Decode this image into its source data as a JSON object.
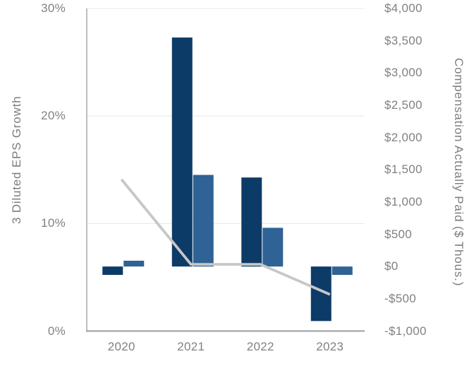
{
  "chart_data": {
    "type": "combo",
    "description": "Dual-axis pay-versus-performance chart: two bar series (compensation, right axis, $ thousands) and one gray line series (3-year diluted EPS growth, left axis, %).",
    "categories": [
      "2020",
      "2021",
      "2022",
      "2023"
    ],
    "series": [
      {
        "name": "compensation-dark-navy-bars",
        "type": "bar",
        "axis": "right",
        "color": "#0d3b68",
        "values": [
          -130,
          3550,
          1380,
          -845
        ]
      },
      {
        "name": "compensation-medium-blue-bars",
        "type": "bar",
        "axis": "right",
        "color": "#2f6295",
        "values": [
          90,
          1420,
          600,
          -130
        ]
      },
      {
        "name": "eps-growth-line",
        "type": "line",
        "axis": "left",
        "color": "#c7c7c7",
        "values": [
          14.1,
          6.2,
          6.2,
          3.4
        ]
      }
    ],
    "left_axis": {
      "title": "3 Diluted EPS Growth",
      "min": 0,
      "max": 30,
      "ticks": [
        {
          "label": "30%",
          "value": 30
        },
        {
          "label": "20%",
          "value": 20
        },
        {
          "label": "10%",
          "value": 10
        },
        {
          "label": "0%",
          "value": 0
        }
      ]
    },
    "right_axis": {
      "title": "Compensation Actually Paid ($ Thous.)",
      "min": -1000,
      "max": 4000,
      "ticks": [
        {
          "label": "$4,000",
          "value": 4000
        },
        {
          "label": "$3,500",
          "value": 3500
        },
        {
          "label": "$3,000",
          "value": 3000
        },
        {
          "label": "$2,500",
          "value": 2500
        },
        {
          "label": "$2,000",
          "value": 2000
        },
        {
          "label": "$1,500",
          "value": 1500
        },
        {
          "label": "$1,000",
          "value": 1000
        },
        {
          "label": "$500",
          "value": 500
        },
        {
          "label": "$0",
          "value": 0
        },
        {
          "label": "-$500",
          "value": -500
        },
        {
          "label": "-$1,000",
          "value": -1000
        }
      ]
    },
    "x_axis": {
      "labels": [
        "2020",
        "2021",
        "2022",
        "2023"
      ]
    },
    "grid": {
      "horizontal": true,
      "vertical": false,
      "gridline_color": "#e8e8e8"
    },
    "axis_line_color": "#9e9e9e",
    "label_color": "#818181",
    "legend": "none",
    "title": ""
  }
}
